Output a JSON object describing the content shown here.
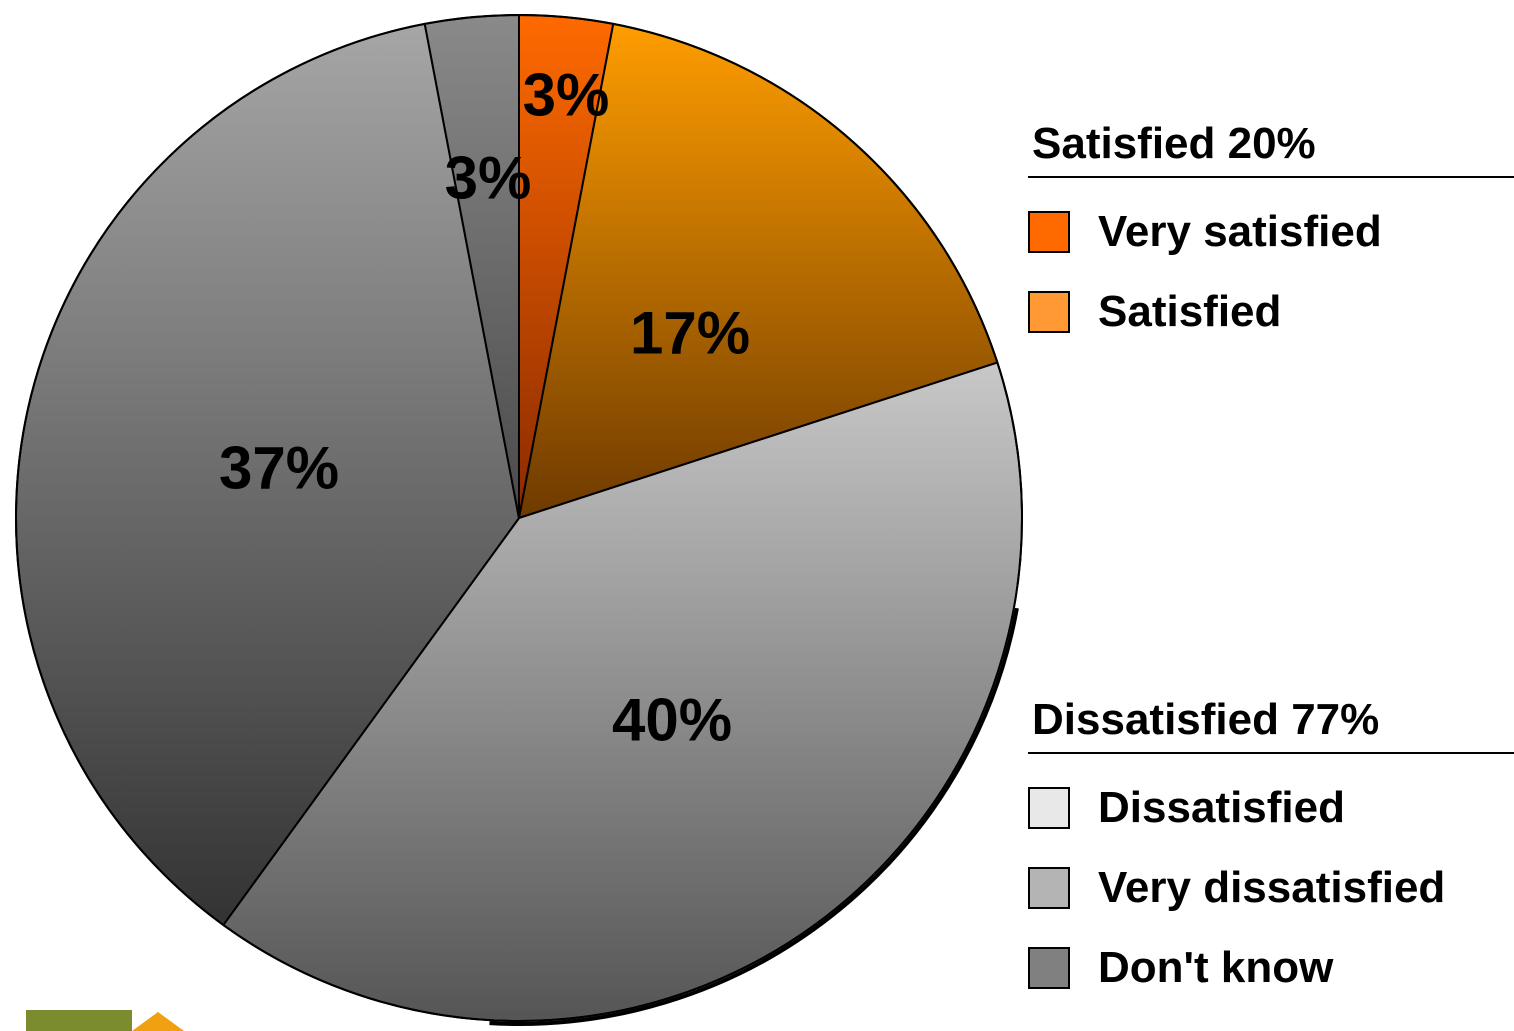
{
  "chart_data": {
    "type": "pie",
    "slices": [
      {
        "label": "Very satisfied",
        "value": 3,
        "display": "3%",
        "color": "#ff6a00",
        "gradient_end": "#8a2a00"
      },
      {
        "label": "Satisfied",
        "value": 17,
        "display": "17%",
        "color": "#ff9d00",
        "gradient_end": "#6e3a00"
      },
      {
        "label": "Dissatisfied",
        "value": 40,
        "display": "40%",
        "color": "#c8c8c8",
        "gradient_end": "#555555"
      },
      {
        "label": "Very dissatisfied",
        "value": 37,
        "display": "37%",
        "color": "#a6a6a6",
        "gradient_end": "#333333"
      },
      {
        "label": "Don't know",
        "value": 3,
        "display": "3%",
        "color": "#8a8a8a",
        "gradient_end": "#4a4a4a"
      }
    ],
    "start_angle": "12 o'clock",
    "direction": "clockwise",
    "legend_placement": "right"
  },
  "legend": {
    "satisfied_group": {
      "title": "Satisfied 20%",
      "items": [
        {
          "label": "Very satisfied",
          "color": "#ff6a00"
        },
        {
          "label": "Satisfied",
          "color": "#ff9933"
        }
      ]
    },
    "dissatisfied_group": {
      "title": "Dissatisfied 77%",
      "items": [
        {
          "label": "Dissatisfied",
          "color": "#e8e8e8"
        },
        {
          "label": "Very dissatisfied",
          "color": "#b4b4b4"
        },
        {
          "label": "Don't know",
          "color": "#808080"
        }
      ]
    }
  },
  "decoration": {
    "corner_square_color": "#7a8c2e",
    "corner_arrow_color": "#f0a010"
  }
}
